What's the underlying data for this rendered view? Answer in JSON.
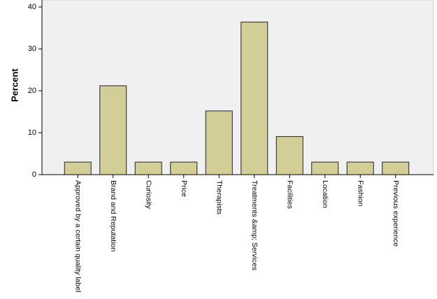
{
  "chart_data": {
    "type": "bar",
    "y_label": "Percent",
    "categories": [
      "Approved by a certain quality label",
      "Brand and Reputation",
      "Curiosity",
      "Price",
      "Therapists",
      "Treatments &amp; Services",
      "Facilities",
      "Location",
      "Fashion",
      "Previous experience"
    ],
    "values": [
      3.0,
      21.2,
      3.0,
      3.0,
      15.2,
      36.4,
      9.1,
      3.0,
      3.0,
      3.0
    ],
    "color": "#d3ce98",
    "ylim": [
      0,
      41.5
    ],
    "yticks": [
      0,
      10,
      20,
      30,
      40
    ],
    "grid": false
  }
}
